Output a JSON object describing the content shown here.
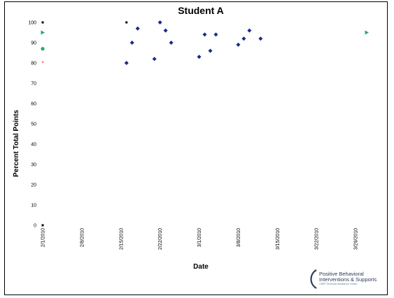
{
  "chart_data": {
    "type": "scatter",
    "title": "Student A",
    "xlabel": "Date",
    "ylabel": "Percent Total Points",
    "ylim": [
      0,
      100
    ],
    "xlim": [
      "2010-02-01",
      "2010-04-01"
    ],
    "y_ticks": [
      "0",
      "10",
      "20",
      "30",
      "40",
      "50",
      "60",
      "70",
      "80",
      "90",
      "100"
    ],
    "x_ticks": [
      "2/1/2010",
      "2/8/2010",
      "2/15/2010",
      "2/22/2010",
      "3/1/2010",
      "3/8/2010",
      "3/15/2010",
      "3/22/2010",
      "3/29/2010"
    ],
    "x_tick_dates": [
      "2010-02-01",
      "2010-02-08",
      "2010-02-15",
      "2010-02-22",
      "2010-03-01",
      "2010-03-08",
      "2010-03-15",
      "2010-03-22",
      "2010-03-29"
    ],
    "grid": false,
    "series": [
      {
        "marker": "diamond",
        "color": "#1a2a8a",
        "points": [
          {
            "x": "2010-02-16",
            "y": 80
          },
          {
            "x": "2010-02-17",
            "y": 90
          },
          {
            "x": "2010-02-18",
            "y": 97
          },
          {
            "x": "2010-02-21",
            "y": 82
          },
          {
            "x": "2010-02-22",
            "y": 100
          },
          {
            "x": "2010-02-23",
            "y": 96
          },
          {
            "x": "2010-02-24",
            "y": 90
          },
          {
            "x": "2010-03-01",
            "y": 83
          },
          {
            "x": "2010-03-02",
            "y": 94
          },
          {
            "x": "2010-03-03",
            "y": 86
          },
          {
            "x": "2010-03-04",
            "y": 94
          },
          {
            "x": "2010-03-08",
            "y": 89
          },
          {
            "x": "2010-03-09",
            "y": 92
          },
          {
            "x": "2010-03-10",
            "y": 96
          },
          {
            "x": "2010-03-12",
            "y": 92
          }
        ]
      },
      {
        "marker": "circle",
        "color": "#2aa66a",
        "points": [
          {
            "x": "2010-02-01",
            "y": 87
          }
        ]
      },
      {
        "marker": "triangle",
        "color": "#2aa66a",
        "points": [
          {
            "x": "2010-02-01",
            "y": 95
          },
          {
            "x": "2010-03-31",
            "y": 95
          }
        ]
      },
      {
        "marker": "star",
        "color": "#e02020",
        "points": [
          {
            "x": "2010-02-01",
            "y": 80
          }
        ]
      },
      {
        "marker": "square",
        "color": "#000000",
        "points": [
          {
            "x": "2010-02-01",
            "y": 100
          },
          {
            "x": "2010-02-01",
            "y": 0
          },
          {
            "x": "2010-02-16",
            "y": 100
          }
        ]
      }
    ]
  },
  "logo": {
    "line1": "Positive Behavioral",
    "line2": "Interventions & Supports",
    "line3": "OSEP Technical Assistance Center"
  }
}
